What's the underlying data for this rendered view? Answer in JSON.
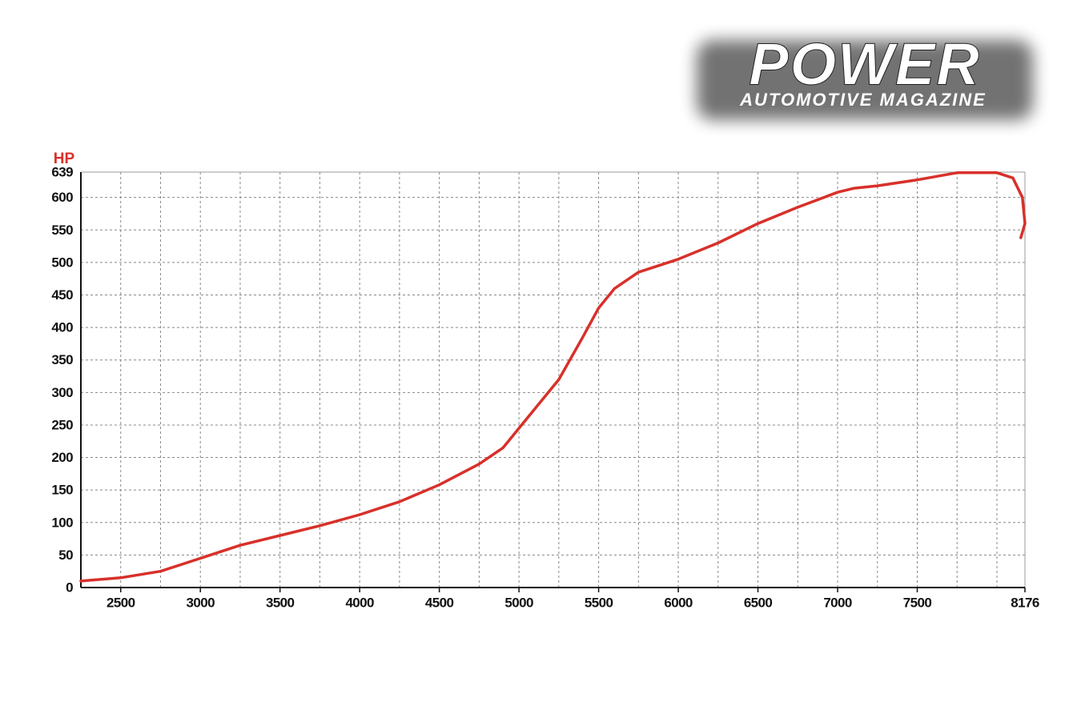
{
  "logo": {
    "title": "POWER",
    "subtitle": "AUTOMOTIVE MAGAZINE"
  },
  "chart_data": {
    "type": "line",
    "y_label": "HP",
    "x": [
      2250,
      2500,
      2750,
      3000,
      3250,
      3500,
      3750,
      4000,
      4250,
      4500,
      4750,
      4900,
      5000,
      5250,
      5400,
      5500,
      5600,
      5750,
      6000,
      6250,
      6500,
      6750,
      7000,
      7100,
      7250,
      7500,
      7750,
      8000,
      8100,
      8160,
      8176,
      8150
    ],
    "series": [
      {
        "name": "HP",
        "color": "#d8302a",
        "values": [
          10,
          15,
          25,
          45,
          65,
          80,
          95,
          112,
          132,
          158,
          190,
          215,
          245,
          320,
          385,
          430,
          460,
          485,
          505,
          530,
          560,
          585,
          608,
          614,
          618,
          627,
          638,
          638,
          630,
          600,
          560,
          538
        ]
      }
    ],
    "xlim": [
      2250,
      8176
    ],
    "xticks": [
      2500,
      3000,
      3500,
      4000,
      4500,
      5000,
      5500,
      6000,
      6500,
      7000,
      7500,
      8176
    ],
    "x_minor_ticks": [
      2750,
      3250,
      3750,
      4250,
      4750,
      5250,
      5750,
      6250,
      6750,
      7250,
      7750,
      8000
    ],
    "ylim": [
      0,
      639
    ],
    "yticks": [
      0,
      50,
      100,
      150,
      200,
      250,
      300,
      350,
      400,
      450,
      500,
      550,
      600,
      639
    ],
    "grid": true
  }
}
